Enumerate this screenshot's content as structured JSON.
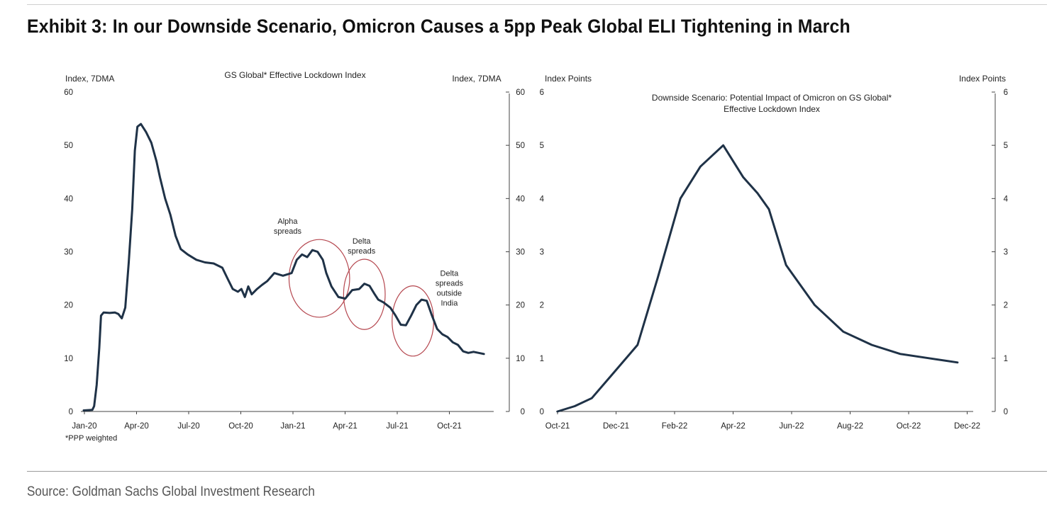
{
  "exhibit_title": "Exhibit 3: In our Downside Scenario, Omicron Causes a 5pp Peak Global ELI Tightening in March",
  "source": "Source: Goldman Sachs Global Investment Research",
  "colors": {
    "line": "#1f3247",
    "circle": "#b5474f",
    "axis": "#444444"
  },
  "chart_data": [
    {
      "type": "line",
      "title": "GS Global* Effective Lockdown Index",
      "ylabel_left": "Index, 7DMA",
      "ylabel_right": "Index, 7DMA",
      "footnote": "*PPP weighted",
      "ylim": [
        0,
        60
      ],
      "yticks": [
        "0",
        "10",
        "20",
        "30",
        "40",
        "50",
        "60"
      ],
      "xtick_labels": [
        "Jan-20",
        "Apr-20",
        "Jul-20",
        "Oct-20",
        "Jan-21",
        "Apr-21",
        "Jul-21",
        "Oct-21"
      ],
      "xlim": [
        0,
        23.5
      ],
      "grid": false,
      "series": [
        {
          "x": [
            0,
            0.5,
            0.6,
            0.75,
            0.9,
            1.0,
            1.15,
            1.5,
            1.8,
            2.0,
            2.2,
            2.4,
            2.6,
            2.8,
            2.95,
            3.1,
            3.3,
            3.6,
            3.9,
            4.2,
            4.4,
            4.7,
            5.0,
            5.3,
            5.6,
            6.0,
            6.5,
            7.0,
            7.5,
            8.0,
            8.3,
            8.6,
            8.9,
            9.1,
            9.3,
            9.5,
            9.7,
            10.0,
            10.3,
            10.6,
            11.0,
            11.5,
            12.0,
            12.3,
            12.6,
            12.9,
            13.2,
            13.5,
            13.8,
            14.0,
            14.3,
            14.7,
            15.1,
            15.5,
            15.9,
            16.2,
            16.5,
            16.8,
            17.0,
            17.3,
            17.7,
            18.0,
            18.3,
            18.6,
            18.9,
            19.2,
            19.5,
            19.8,
            20.1,
            20.4,
            20.7,
            21.0,
            21.3,
            21.6,
            21.9,
            22.2,
            22.5,
            22.8,
            23.1
          ],
          "values": [
            0.2,
            0.3,
            1.0,
            5.0,
            12.0,
            18.0,
            18.6,
            18.5,
            18.6,
            18.3,
            17.5,
            19.5,
            28.0,
            38.0,
            49.0,
            53.5,
            54.0,
            52.5,
            50.5,
            47.0,
            44.0,
            40.0,
            37.0,
            33.0,
            30.5,
            29.5,
            28.5,
            28.0,
            27.8,
            27.0,
            25.0,
            23.0,
            22.5,
            23.0,
            21.5,
            23.5,
            22.0,
            23.0,
            23.8,
            24.5,
            26.0,
            25.5,
            26.0,
            28.5,
            29.5,
            29.0,
            30.3,
            30.0,
            28.5,
            26.0,
            23.5,
            21.5,
            21.2,
            22.8,
            23.0,
            24.0,
            23.6,
            22.0,
            21.0,
            20.5,
            19.5,
            18.0,
            16.3,
            16.2,
            18.0,
            20.0,
            21.0,
            20.8,
            18.0,
            15.5,
            14.5,
            14.0,
            13.0,
            12.5,
            11.3,
            11.0,
            11.2,
            11.0,
            10.8
          ]
        }
      ],
      "annotations": [
        {
          "text": [
            "Alpha",
            "spreads"
          ],
          "x": 13.6,
          "y": 25.0,
          "rx_months": 1.75,
          "ry_units": 7.3
        },
        {
          "text": [
            "Delta",
            "spreads"
          ],
          "x": 16.2,
          "y": 22.0,
          "rx_months": 1.2,
          "ry_units": 6.6
        },
        {
          "text": [
            "Delta",
            "spreads",
            "outside",
            "India"
          ],
          "x": 19.0,
          "y": 17.0,
          "rx_months": 1.2,
          "ry_units": 6.6
        }
      ]
    },
    {
      "type": "line",
      "title": "Downside Scenario: Potential Impact of Omicron on GS Global* Effective Lockdown Index",
      "title_lines": [
        "Downside Scenario: Potential Impact of Omicron on GS Global*",
        "Effective Lockdown Index"
      ],
      "ylabel_left": "Index Points",
      "ylabel_right": "Index Points",
      "ylim": [
        0,
        6
      ],
      "yticks": [
        "0",
        "1",
        "2",
        "3",
        "4",
        "5",
        "6"
      ],
      "xtick_labels": [
        "Oct-21",
        "Dec-21",
        "Feb-22",
        "Apr-22",
        "Jun-22",
        "Aug-22",
        "Oct-22",
        "Dec-22"
      ],
      "xlim": [
        0,
        14.5
      ],
      "grid": false,
      "series": [
        {
          "x": [
            0,
            0.6,
            1.2,
            2.0,
            2.8,
            3.5,
            4.3,
            5.0,
            5.8,
            6.5,
            7.0,
            7.4,
            8.0,
            9.0,
            10.0,
            11.0,
            12.0,
            13.0,
            14.0
          ],
          "values": [
            0.0,
            0.1,
            0.25,
            0.75,
            1.25,
            2.5,
            4.0,
            4.6,
            5.0,
            4.4,
            4.1,
            3.8,
            2.75,
            2.0,
            1.5,
            1.25,
            1.08,
            1.0,
            0.92
          ]
        }
      ]
    }
  ]
}
